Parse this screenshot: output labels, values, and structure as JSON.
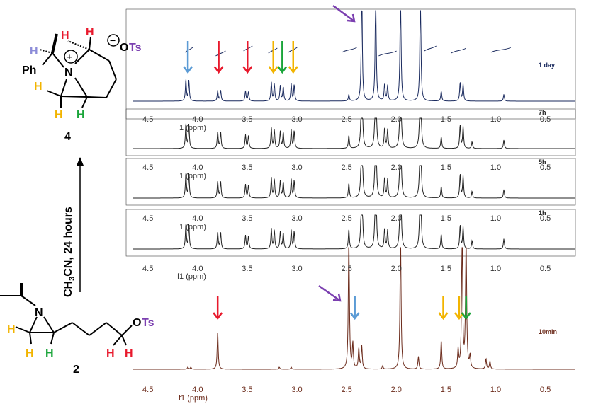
{
  "chart_data": {
    "type": "line",
    "title": "",
    "xlabel": "f1 (ppm)",
    "ylabel": "",
    "xlim": [
      4.65,
      0.2
    ],
    "x_ticks": [
      "4.5",
      "4.0",
      "3.5",
      "3.0",
      "2.5",
      "2.0",
      "1.5",
      "1.0",
      "0.5"
    ],
    "series": [
      {
        "name": "1 day",
        "color": "#1a2a5e",
        "peaks": [
          [
            4.12,
            0.65
          ],
          [
            4.09,
            0.6
          ],
          [
            3.8,
            0.3
          ],
          [
            3.77,
            0.32
          ],
          [
            3.52,
            0.3
          ],
          [
            3.49,
            0.28
          ],
          [
            3.26,
            0.55
          ],
          [
            3.23,
            0.5
          ],
          [
            3.17,
            0.45
          ],
          [
            3.14,
            0.42
          ],
          [
            3.06,
            0.5
          ],
          [
            3.03,
            0.48
          ],
          [
            2.48,
            0.2
          ],
          [
            2.35,
            3.5
          ],
          [
            2.21,
            3.5
          ],
          [
            2.12,
            0.5
          ],
          [
            2.09,
            0.45
          ],
          [
            1.96,
            3.5
          ],
          [
            1.76,
            3.5
          ],
          [
            1.55,
            0.3
          ],
          [
            1.36,
            0.55
          ],
          [
            1.33,
            0.5
          ],
          [
            0.92,
            0.2
          ]
        ]
      },
      {
        "name": "7h",
        "color": "#222222",
        "peaks": [
          [
            4.12,
            0.75
          ],
          [
            4.09,
            0.7
          ],
          [
            3.8,
            0.5
          ],
          [
            3.77,
            0.48
          ],
          [
            3.52,
            0.4
          ],
          [
            3.49,
            0.38
          ],
          [
            3.26,
            0.6
          ],
          [
            3.23,
            0.55
          ],
          [
            3.17,
            0.5
          ],
          [
            3.14,
            0.48
          ],
          [
            3.06,
            0.55
          ],
          [
            3.03,
            0.52
          ],
          [
            2.48,
            0.4
          ],
          [
            2.35,
            3.5
          ],
          [
            2.21,
            3.5
          ],
          [
            2.12,
            0.6
          ],
          [
            2.09,
            0.55
          ],
          [
            1.96,
            3.5
          ],
          [
            1.76,
            3.5
          ],
          [
            1.55,
            0.35
          ],
          [
            1.36,
            0.7
          ],
          [
            1.33,
            0.65
          ],
          [
            1.24,
            0.2
          ],
          [
            0.92,
            0.25
          ]
        ]
      },
      {
        "name": "5h",
        "color": "#222222",
        "peaks": [
          [
            4.12,
            0.75
          ],
          [
            4.09,
            0.7
          ],
          [
            3.8,
            0.5
          ],
          [
            3.77,
            0.48
          ],
          [
            3.52,
            0.4
          ],
          [
            3.49,
            0.38
          ],
          [
            3.26,
            0.6
          ],
          [
            3.23,
            0.55
          ],
          [
            3.17,
            0.5
          ],
          [
            3.14,
            0.48
          ],
          [
            3.06,
            0.55
          ],
          [
            3.03,
            0.52
          ],
          [
            2.48,
            0.45
          ],
          [
            2.35,
            3.5
          ],
          [
            2.21,
            3.5
          ],
          [
            2.12,
            0.6
          ],
          [
            2.09,
            0.55
          ],
          [
            1.96,
            3.5
          ],
          [
            1.76,
            3.5
          ],
          [
            1.55,
            0.35
          ],
          [
            1.36,
            0.7
          ],
          [
            1.33,
            0.65
          ],
          [
            1.24,
            0.2
          ],
          [
            0.92,
            0.25
          ]
        ]
      },
      {
        "name": "1h",
        "color": "#222222",
        "peaks": [
          [
            4.12,
            0.75
          ],
          [
            4.09,
            0.7
          ],
          [
            3.8,
            0.5
          ],
          [
            3.77,
            0.48
          ],
          [
            3.52,
            0.4
          ],
          [
            3.49,
            0.38
          ],
          [
            3.26,
            0.6
          ],
          [
            3.23,
            0.55
          ],
          [
            3.17,
            0.5
          ],
          [
            3.14,
            0.48
          ],
          [
            3.06,
            0.55
          ],
          [
            3.03,
            0.52
          ],
          [
            2.48,
            0.6
          ],
          [
            2.35,
            3.5
          ],
          [
            2.21,
            3.5
          ],
          [
            2.12,
            0.6
          ],
          [
            2.09,
            0.55
          ],
          [
            1.96,
            3.5
          ],
          [
            1.76,
            3.5
          ],
          [
            1.55,
            0.45
          ],
          [
            1.36,
            0.7
          ],
          [
            1.33,
            0.65
          ],
          [
            1.24,
            0.25
          ],
          [
            0.92,
            0.3
          ]
        ]
      },
      {
        "name": "10min",
        "color": "#6b2a1a",
        "peaks": [
          [
            4.1,
            0.05
          ],
          [
            4.07,
            0.05
          ],
          [
            3.8,
            0.9
          ],
          [
            3.18,
            0.05
          ],
          [
            3.06,
            0.05
          ],
          [
            2.48,
            3.5
          ],
          [
            2.44,
            0.6
          ],
          [
            2.38,
            0.5
          ],
          [
            2.35,
            0.55
          ],
          [
            2.14,
            0.08
          ],
          [
            1.96,
            3.5
          ],
          [
            1.78,
            0.3
          ],
          [
            1.55,
            0.7
          ],
          [
            1.38,
            0.45
          ],
          [
            1.34,
            3.5
          ],
          [
            1.3,
            3.5
          ],
          [
            1.26,
            0.3
          ],
          [
            1.1,
            0.25
          ],
          [
            1.06,
            0.2
          ]
        ]
      }
    ],
    "time_labels": [
      "1 day",
      "7h",
      "5h",
      "1h",
      "10min"
    ],
    "partial_axis_label": "1 (ppm)",
    "arrows": [
      {
        "ppm": 4.1,
        "trace": "1 day",
        "color": "#5b9bd5"
      },
      {
        "ppm": 3.79,
        "trace": "1 day",
        "color": "#e8192c"
      },
      {
        "ppm": 3.5,
        "trace": "1 day",
        "color": "#e8192c"
      },
      {
        "ppm": 3.24,
        "trace": "1 day",
        "color": "#f2b400"
      },
      {
        "ppm": 3.15,
        "trace": "1 day",
        "color": "#1aa53a"
      },
      {
        "ppm": 3.04,
        "trace": "1 day",
        "color": "#f2b400"
      },
      {
        "ppm": 3.8,
        "trace": "10min",
        "color": "#e8192c"
      },
      {
        "ppm": 2.42,
        "trace": "10min",
        "color": "#5b9bd5"
      },
      {
        "ppm": 1.53,
        "trace": "10min",
        "color": "#f2b400"
      },
      {
        "ppm": 1.37,
        "trace": "10min",
        "color": "#f2b400"
      },
      {
        "ppm": 1.3,
        "trace": "10min",
        "color": "#1aa53a"
      }
    ],
    "purple_arrow_color": "#7b3fb0"
  },
  "compounds": {
    "top": {
      "number": "4",
      "counterion_charge": "−",
      "counterion_prefix": "O",
      "counterion_group": "Ts",
      "ph_label": "Ph",
      "n_label": "N",
      "plus": "+",
      "h_label": "H"
    },
    "bottom": {
      "number": "2",
      "n_label": "N",
      "otsO": "O",
      "otsTs": "Ts",
      "h_label": "H"
    }
  },
  "reaction": {
    "label_pre": "CH",
    "label_sub": "3",
    "label_post": "CN, 24 hours"
  },
  "colors": {
    "red": "#e8192c",
    "green": "#1aa53a",
    "orange": "#f2b400",
    "blue": "#5b9bd5",
    "purple": "#7b3fb0",
    "lavender": "#8b8bd8",
    "black": "#000000",
    "brown": "#6b2a1a",
    "navy": "#1a2a5e"
  }
}
